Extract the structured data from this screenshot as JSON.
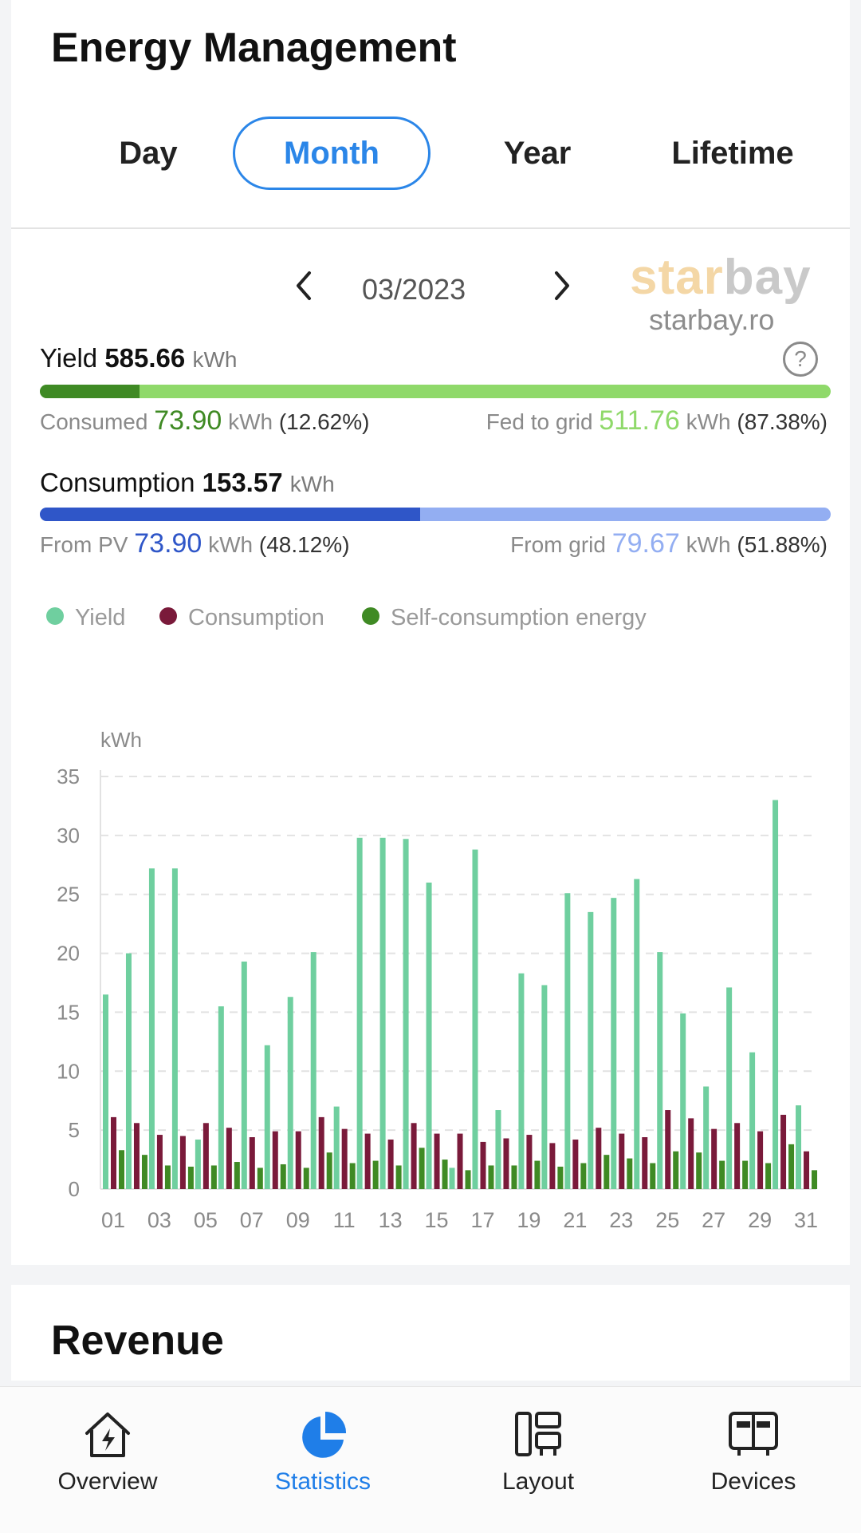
{
  "header": {
    "title": "Energy Management"
  },
  "tabs": [
    {
      "label": "Day",
      "active": false
    },
    {
      "label": "Month",
      "active": true
    },
    {
      "label": "Year",
      "active": false
    },
    {
      "label": "Lifetime",
      "active": false
    }
  ],
  "period": {
    "label": "03/2023",
    "prev_icon": "chevron-left-icon",
    "next_icon": "chevron-right-icon"
  },
  "watermark": {
    "brand_a": "star",
    "brand_b": "bay",
    "site": "starbay.ro"
  },
  "yield": {
    "label": "Yield",
    "value": "585.66",
    "unit": "kWh",
    "consumed_label": "Consumed",
    "consumed_value": "73.90",
    "consumed_unit": "kWh",
    "consumed_pct": "(12.62%)",
    "fed_label": "Fed to grid",
    "fed_value": "511.76",
    "fed_unit": "kWh",
    "fed_pct": "(87.38%)",
    "consumed_fraction": 0.1262
  },
  "consumption": {
    "label": "Consumption",
    "value": "153.57",
    "unit": "kWh",
    "pv_label": "From PV",
    "pv_value": "73.90",
    "pv_unit": "kWh",
    "pv_pct": "(48.12%)",
    "grid_label": "From grid",
    "grid_value": "79.67",
    "grid_unit": "kWh",
    "grid_pct": "(51.88%)",
    "pv_fraction": 0.4812
  },
  "colors": {
    "yield": "#6fcf9f",
    "consumption": "#7a1a3a",
    "self": "#3f8a24",
    "consumed_bar": "#3f8a24",
    "fed_bar": "#8fd96a",
    "pv_bar": "#2f56c8",
    "grid_bar": "#93aef2",
    "accent": "#2b86e8"
  },
  "legend": [
    "Yield",
    "Consumption",
    "Self-consumption energy"
  ],
  "chart_data": {
    "type": "bar",
    "ylabel": "kWh",
    "ylim": [
      0,
      35
    ],
    "yticks": [
      "0",
      "5",
      "10",
      "15",
      "20",
      "25",
      "30",
      "35"
    ],
    "xticks": [
      "01",
      "03",
      "05",
      "07",
      "09",
      "11",
      "13",
      "15",
      "17",
      "19",
      "21",
      "23",
      "25",
      "27",
      "29",
      "31"
    ],
    "grid": true,
    "categories": [
      "01",
      "02",
      "03",
      "04",
      "05",
      "06",
      "07",
      "08",
      "09",
      "10",
      "11",
      "12",
      "13",
      "14",
      "15",
      "16",
      "17",
      "18",
      "19",
      "20",
      "21",
      "22",
      "23",
      "24",
      "25",
      "26",
      "27",
      "28",
      "29",
      "30",
      "31"
    ],
    "series": [
      {
        "name": "Yield",
        "values": [
          16.5,
          20.0,
          27.2,
          27.2,
          4.2,
          15.5,
          19.3,
          12.2,
          16.3,
          20.1,
          7.0,
          29.8,
          29.8,
          29.7,
          26.0,
          1.8,
          28.8,
          6.7,
          18.3,
          17.3,
          25.1,
          23.5,
          24.7,
          26.3,
          20.1,
          14.9,
          8.7,
          17.1,
          11.6,
          33.0,
          7.1
        ]
      },
      {
        "name": "Consumption",
        "values": [
          6.1,
          5.6,
          4.6,
          4.5,
          5.6,
          5.2,
          4.4,
          4.9,
          4.9,
          6.1,
          5.1,
          4.7,
          4.2,
          5.6,
          4.7,
          4.7,
          4.0,
          4.3,
          4.6,
          3.9,
          4.2,
          5.2,
          4.7,
          4.4,
          6.7,
          6.0,
          5.1,
          5.6,
          4.9,
          6.3,
          3.2
        ]
      },
      {
        "name": "Self-consumption energy",
        "values": [
          3.3,
          2.9,
          2.0,
          1.9,
          2.0,
          2.3,
          1.8,
          2.1,
          1.8,
          3.1,
          2.2,
          2.4,
          2.0,
          3.5,
          2.5,
          1.6,
          2.0,
          2.0,
          2.4,
          1.9,
          2.2,
          2.9,
          2.6,
          2.2,
          3.2,
          3.1,
          2.4,
          2.4,
          2.2,
          3.8,
          1.6
        ]
      }
    ]
  },
  "revenue": {
    "title": "Revenue"
  },
  "bottom_nav": [
    {
      "label": "Overview",
      "icon": "home-bolt-icon",
      "active": false
    },
    {
      "label": "Statistics",
      "icon": "pie-chart-icon",
      "active": true
    },
    {
      "label": "Layout",
      "icon": "layout-icon",
      "active": false
    },
    {
      "label": "Devices",
      "icon": "devices-icon",
      "active": false
    }
  ]
}
